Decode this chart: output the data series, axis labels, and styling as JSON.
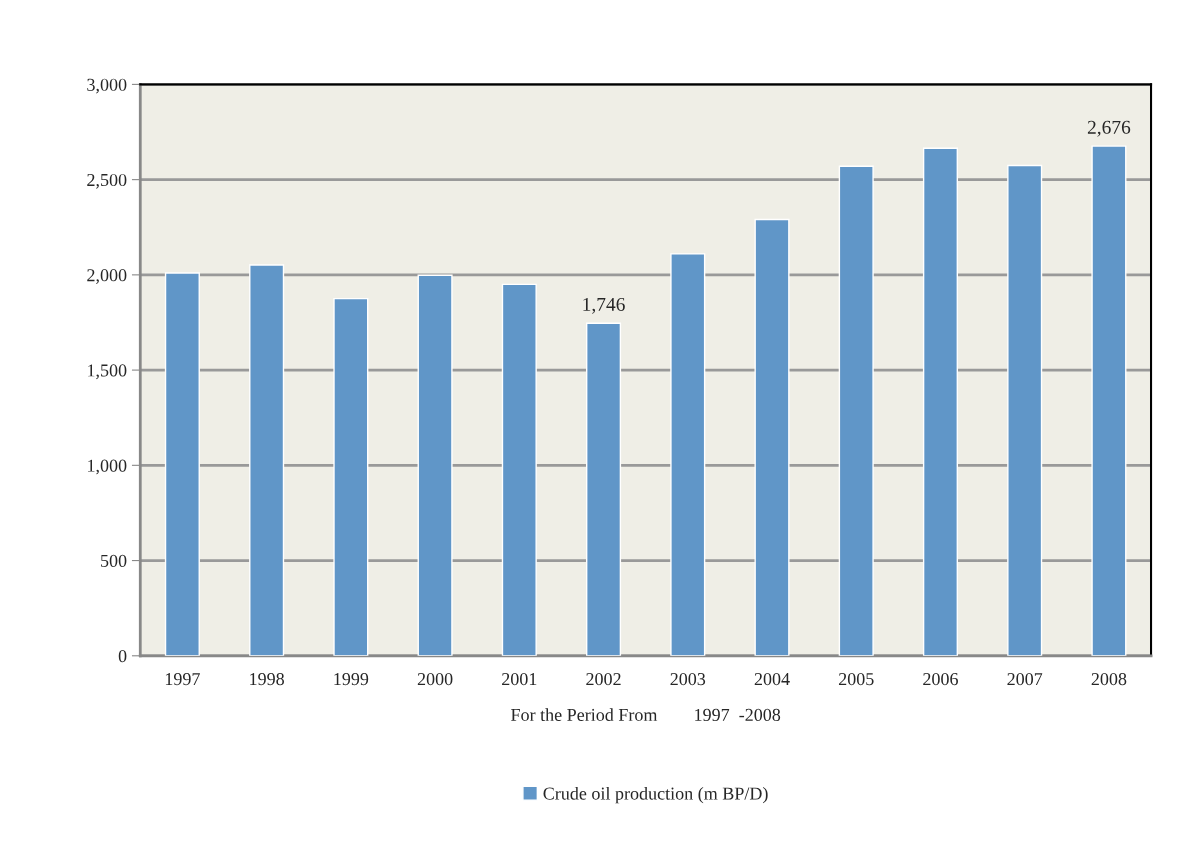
{
  "chart_data": {
    "type": "bar",
    "xlabel": "For the Period From        1997  -2008",
    "categories": [
      "1997",
      "1998",
      "1999",
      "2000",
      "2001",
      "2002",
      "2003",
      "2004",
      "2005",
      "2006",
      "2007",
      "2008"
    ],
    "series": [
      {
        "name": "Crude oil production (m BP/D)",
        "color": "#6096c8",
        "values": [
          2010,
          2052,
          1875,
          1998,
          1950,
          1746,
          2110,
          2291,
          2570,
          2665,
          2574,
          2676
        ],
        "value_labels": [
          null,
          null,
          null,
          null,
          null,
          "1,746",
          null,
          null,
          null,
          null,
          null,
          "2,676"
        ]
      }
    ],
    "ylim": [
      0,
      3000
    ],
    "yticks": [
      {
        "value": 0,
        "label": "0"
      },
      {
        "value": 500,
        "label": "500"
      },
      {
        "value": 1000,
        "label": "1,000"
      },
      {
        "value": 1500,
        "label": "1,500"
      },
      {
        "value": 2000,
        "label": "2,000"
      },
      {
        "value": 2500,
        "label": "2,500"
      },
      {
        "value": 3000,
        "label": "3,000"
      }
    ],
    "grid": "y",
    "legend": "bottom"
  }
}
